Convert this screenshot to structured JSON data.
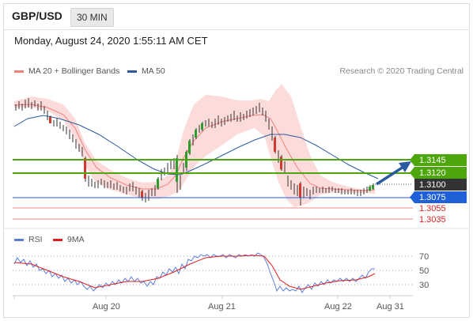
{
  "header": {
    "symbol": "GBP/USD",
    "timeframe": "30 MIN"
  },
  "datetime": "Monday, August 24, 2020 1:55:11 AM CET",
  "legend": {
    "ma20": {
      "label": "MA 20 + Bollinger Bands",
      "color": "#f07f7f"
    },
    "ma50": {
      "label": "MA 50",
      "color": "#2c5aa0"
    }
  },
  "credit": "Research © 2020 Trading Central",
  "rsi_legend": {
    "rsi": {
      "label": "RSI",
      "color": "#5b7fd6"
    },
    "ma9": {
      "label": "9MA",
      "color": "#e02020"
    }
  },
  "levels": [
    {
      "value": "1.3145",
      "kind": "resistance",
      "color": "#4ca60c"
    },
    {
      "value": "1.3120",
      "kind": "resistance",
      "color": "#4ca60c"
    },
    {
      "value": "1.3100",
      "kind": "current",
      "color": "#333333"
    },
    {
      "value": "1.3075",
      "kind": "pivot",
      "color": "#1f5fd8"
    },
    {
      "value": "1.3055",
      "kind": "support",
      "color": "#e02020"
    },
    {
      "value": "1.3035",
      "kind": "support",
      "color": "#e02020"
    }
  ],
  "rsi_axis": [
    "70",
    "50",
    "30"
  ],
  "x_labels": [
    "Aug 20",
    "Aug 21",
    "Aug 22",
    "Aug 31"
  ]
}
